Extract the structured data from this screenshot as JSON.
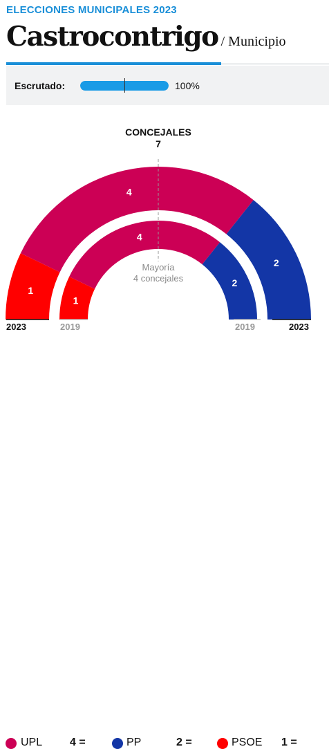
{
  "header": {
    "kicker": "ELECCIONES MUNICIPALES 2023",
    "title": "Castrocontrigo",
    "subtitle": "/ Municipio"
  },
  "scrutiny": {
    "label": "Escrutado:",
    "value_text": "100%",
    "fraction": 1.0
  },
  "chart_data": {
    "type": "hemicycle",
    "title": "CONCEJALES",
    "total_seats": "7",
    "majority_line1": "Mayoría",
    "majority_line2": "4 concejales",
    "outer_year_left": "2023",
    "outer_year_right": "2023",
    "inner_year_left": "2019",
    "inner_year_right": "2019",
    "rings": [
      {
        "year": "2023",
        "seats": [
          {
            "party": "PSOE",
            "seats": 1,
            "color": "#ff0000"
          },
          {
            "party": "UPL",
            "seats": 4,
            "color": "#cc0055"
          },
          {
            "party": "PP",
            "seats": 2,
            "color": "#1336a6"
          }
        ]
      },
      {
        "year": "2019",
        "seats": [
          {
            "party": "PSOE",
            "seats": 1,
            "color": "#ff0000"
          },
          {
            "party": "UPL",
            "seats": 4,
            "color": "#cc0055"
          },
          {
            "party": "PP",
            "seats": 2,
            "color": "#1336a6"
          }
        ]
      }
    ]
  },
  "legend": [
    {
      "name": "UPL",
      "count": "4 =",
      "color": "#cc0055",
      "icon": "circle-dot-icon"
    },
    {
      "name": "PP",
      "count": "2 =",
      "color": "#1336a6",
      "icon": "circle-dot-icon"
    },
    {
      "name": "PSOE",
      "count": "1 =",
      "color": "#ff0000",
      "icon": "circle-dot-icon"
    }
  ]
}
